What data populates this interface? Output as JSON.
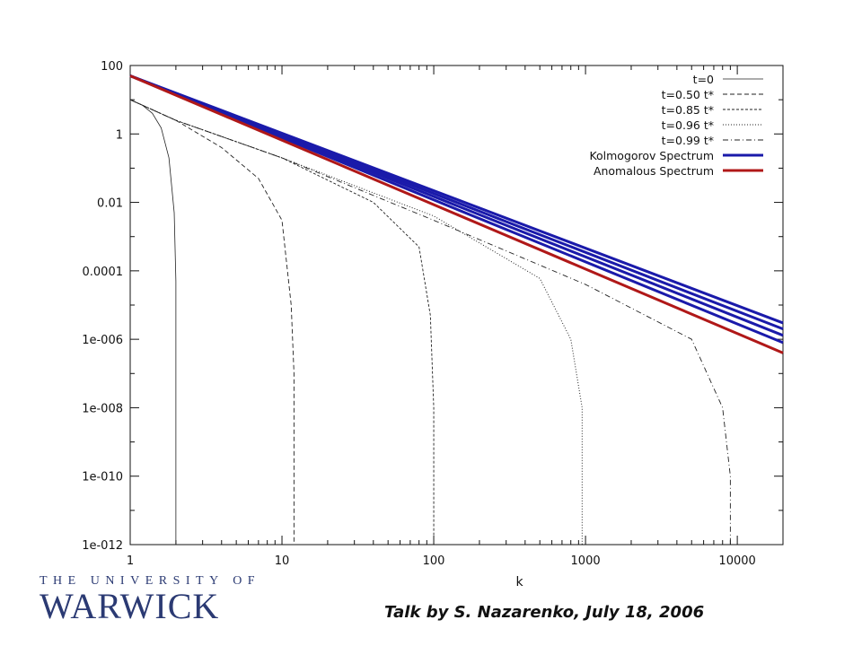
{
  "footer": {
    "note": "Talk by S. Nazarenko, July 18, 2006",
    "logo_top": "THE UNIVERSITY OF",
    "logo_main": "WARWICK"
  },
  "chart_data": {
    "type": "line",
    "title": "",
    "xlabel": "k",
    "ylabel": "",
    "x_scale": "log",
    "y_scale": "log",
    "xlim": [
      1,
      20000
    ],
    "ylim": [
      1e-12,
      100
    ],
    "x_ticks": [
      "1",
      "10",
      "100",
      "1000",
      "10000"
    ],
    "y_ticks": [
      "100",
      "1",
      "0.01",
      "0.0001",
      "1e-006",
      "1e-008",
      "1e-010",
      "1e-012"
    ],
    "grid": false,
    "legend_position": "top-right",
    "series": [
      {
        "name": "t=0",
        "style": "solid",
        "color": "#222222",
        "x": [
          1,
          1.2,
          1.4,
          1.6,
          1.8,
          1.95,
          2.0,
          2.0
        ],
        "y": [
          10,
          7,
          4,
          1.5,
          0.2,
          0.005,
          5e-05,
          1e-12
        ]
      },
      {
        "name": "t=0.50 t*",
        "style": "dashed",
        "color": "#222222",
        "x": [
          1,
          2,
          4,
          7,
          10,
          11.5,
          12.0,
          12.0
        ],
        "y": [
          10,
          2.5,
          0.4,
          0.05,
          0.003,
          1e-05,
          1e-07,
          1e-12
        ]
      },
      {
        "name": "t=0.85 t*",
        "style": "dashed-fine",
        "color": "#222222",
        "x": [
          1,
          2,
          10,
          40,
          80,
          95,
          100,
          100
        ],
        "y": [
          10,
          2.5,
          0.2,
          0.01,
          0.0005,
          5e-06,
          1e-08,
          1e-12
        ]
      },
      {
        "name": "t=0.96 t*",
        "style": "dotted",
        "color": "#222222",
        "x": [
          1,
          2,
          10,
          100,
          500,
          800,
          950,
          950
        ],
        "y": [
          10,
          2.5,
          0.2,
          0.004,
          6e-05,
          1e-06,
          1e-08,
          1e-12
        ]
      },
      {
        "name": "t=0.99 t*",
        "style": "dash-dot",
        "color": "#222222",
        "x": [
          1,
          2,
          10,
          100,
          1000,
          5000,
          8000,
          9000,
          9000
        ],
        "y": [
          10,
          2.5,
          0.2,
          0.003,
          4e-05,
          1e-06,
          1e-08,
          1e-10,
          1e-12
        ]
      },
      {
        "name": "Kolmogorov Spectrum",
        "style": "thick",
        "color": "#1a1aaa",
        "lines": [
          {
            "x": [
              1,
              20000
            ],
            "y": [
              50,
              3e-06
            ]
          },
          {
            "x": [
              1,
              20000
            ],
            "y": [
              50,
              2e-06
            ]
          },
          {
            "x": [
              1,
              20000
            ],
            "y": [
              50,
              1.3e-06
            ]
          },
          {
            "x": [
              1,
              20000
            ],
            "y": [
              50,
              8e-07
            ]
          }
        ]
      },
      {
        "name": "Anomalous Spectrum",
        "style": "thick",
        "color": "#b01818",
        "x": [
          1,
          20000
        ],
        "y": [
          50,
          4e-07
        ]
      }
    ]
  }
}
